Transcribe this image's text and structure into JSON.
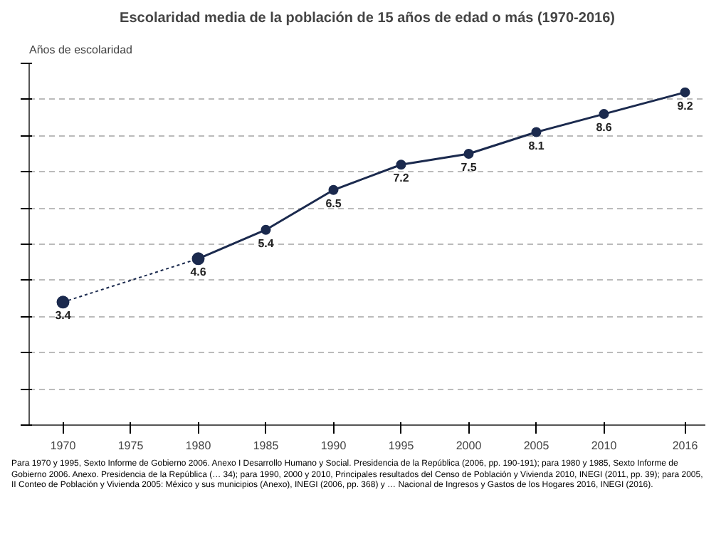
{
  "chart_data": {
    "type": "line",
    "title": "Escolaridad media de la población de 15 años de edad o más (1970-2016)",
    "ylabel": "Años de escolaridad",
    "x": [
      1980,
      1985,
      1990,
      1995,
      2000,
      2005,
      2010,
      2016
    ],
    "series": [
      {
        "color": "#1b2a4e",
        "x": [
          1970,
          1980
        ],
        "values": [
          3.4,
          4.6
        ],
        "line_style": "dotted",
        "value_labels": [
          "3.4",
          null
        ]
      },
      {
        "color": "#1b2a4e",
        "values": [
          4.6,
          5.4,
          6.5,
          7.2,
          7.5,
          8.1,
          8.6,
          9.2
        ],
        "line_style": "solid",
        "value_labels": [
          "4.6",
          "5.4",
          "6.5",
          "7.2",
          "7.5",
          "8.1",
          "8.6",
          "9.2"
        ]
      }
    ],
    "xlim": [
      1967.5,
      2017.5
    ],
    "xticks": [
      1970,
      1975,
      1980,
      1985,
      1990,
      1995,
      2000,
      2005,
      2010,
      2016
    ],
    "ylim": [
      0,
      10
    ],
    "yticks": [
      0,
      1,
      2,
      3,
      4,
      5,
      6,
      7,
      8,
      9,
      10
    ],
    "tick_labels": "x",
    "grid": "y",
    "marker": "circle",
    "annotations": [
      "Para 1970 y 1995, Sexto Informe de Gobierno 2006. Anexo I Desarrollo Humano y Social. Presidencia de la República (2006, pp. 190-191); para 1980 y 1985, Sexto Informe de Gobierno 2006. Anexo. Presidencia de la República (… 34); para 1990, 2000 y 2010, Principales resultados del Censo de Población y Vivienda 2010, INEGI (2011, pp. 39); para 2005, II Conteo de Población y Vivienda 2005: México y sus municipios (Anexo), INEGI (2006, pp. 368) y … Nacional de Ingresos y Gastos de los Hogares 2016, INEGI (2016)."
    ]
  }
}
